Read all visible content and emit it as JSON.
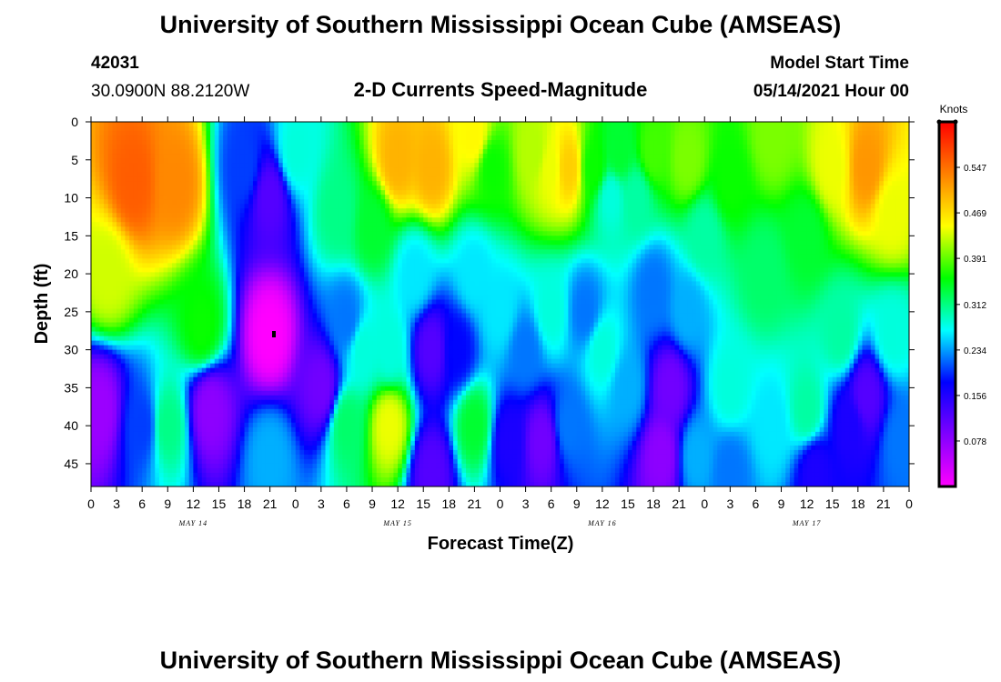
{
  "header": {
    "title": "University of Southern Mississippi Ocean Cube (AMSEAS)",
    "station_id": "42031",
    "location": "30.0900N  88.2120W",
    "product": "2-D Currents Speed-Magnitude",
    "model_start_label": "Model Start Time",
    "model_start_value": "05/14/2021 Hour 00"
  },
  "footer": {
    "title": "University of Southern Mississippi Ocean Cube (AMSEAS)"
  },
  "chart_data": {
    "type": "heatmap",
    "title": "2-D Currents Speed-Magnitude",
    "xlabel": "Forecast Time(Z)",
    "ylabel": "Depth (ft)",
    "x_tick_labels": [
      "0",
      "3",
      "6",
      "9",
      "12",
      "15",
      "18",
      "21",
      "0",
      "3",
      "6",
      "9",
      "12",
      "15",
      "18",
      "21",
      "0",
      "3",
      "6",
      "9",
      "12",
      "15",
      "18",
      "21",
      "0",
      "3",
      "6",
      "9",
      "12",
      "15",
      "18",
      "21",
      "0"
    ],
    "x_range_hours": [
      0,
      96
    ],
    "day_labels": [
      {
        "label": "MAY 14",
        "hour": 12
      },
      {
        "label": "MAY 15",
        "hour": 36
      },
      {
        "label": "MAY 16",
        "hour": 60
      },
      {
        "label": "MAY 17",
        "hour": 84
      }
    ],
    "y_ticks": [
      0,
      5,
      10,
      15,
      20,
      25,
      30,
      35,
      40,
      45
    ],
    "y_range": [
      0,
      48
    ],
    "y_inverted": true,
    "colorbar": {
      "unit": "Knots",
      "ticks": [
        "0.547",
        "0.469",
        "0.391",
        "0.312",
        "0.234",
        "0.156",
        "0.078"
      ],
      "tick_values": [
        0.547,
        0.469,
        0.391,
        0.312,
        0.234,
        0.156,
        0.078
      ],
      "range": [
        0,
        0.625
      ],
      "colors": [
        "#ff00ff",
        "#8000ff",
        "#0000ff",
        "#00ffff",
        "#00ff00",
        "#ffff00",
        "#ff8000",
        "#ff0000"
      ]
    },
    "features": [
      {
        "hour": 5,
        "depth": 8,
        "speed": 0.56
      },
      {
        "hour": 10,
        "depth": 8,
        "speed": 0.53
      },
      {
        "hour": 2,
        "depth": 20,
        "speed": 0.43
      },
      {
        "hour": 13,
        "depth": 27,
        "speed": 0.36
      },
      {
        "hour": 1,
        "depth": 38,
        "speed": 0.07
      },
      {
        "hour": 6,
        "depth": 40,
        "speed": 0.2
      },
      {
        "hour": 9,
        "depth": 40,
        "speed": 0.31
      },
      {
        "hour": 14,
        "depth": 38,
        "speed": 0.08
      },
      {
        "hour": 21,
        "depth": 28,
        "speed": 0.0
      },
      {
        "hour": 21,
        "depth": 10,
        "speed": 0.12
      },
      {
        "hour": 18,
        "depth": 6,
        "speed": 0.2
      },
      {
        "hour": 24,
        "depth": 4,
        "speed": 0.28
      },
      {
        "hour": 21,
        "depth": 44,
        "speed": 0.24
      },
      {
        "hour": 27,
        "depth": 35,
        "speed": 0.1
      },
      {
        "hour": 29,
        "depth": 12,
        "speed": 0.31
      },
      {
        "hour": 30,
        "depth": 26,
        "speed": 0.22
      },
      {
        "hour": 30,
        "depth": 40,
        "speed": 0.32
      },
      {
        "hour": 32,
        "depth": 30,
        "speed": 0.28
      },
      {
        "hour": 36,
        "depth": 5,
        "speed": 0.5
      },
      {
        "hour": 33,
        "depth": 14,
        "speed": 0.34
      },
      {
        "hour": 35,
        "depth": 40,
        "speed": 0.44
      },
      {
        "hour": 35,
        "depth": 30,
        "speed": 0.28
      },
      {
        "hour": 38,
        "depth": 20,
        "speed": 0.26
      },
      {
        "hour": 40,
        "depth": 6,
        "speed": 0.5
      },
      {
        "hour": 40,
        "depth": 30,
        "speed": 0.12
      },
      {
        "hour": 40,
        "depth": 46,
        "speed": 0.12
      },
      {
        "hour": 43,
        "depth": 30,
        "speed": 0.18
      },
      {
        "hour": 45,
        "depth": 2,
        "speed": 0.45
      },
      {
        "hour": 45,
        "depth": 20,
        "speed": 0.26
      },
      {
        "hour": 45,
        "depth": 40,
        "speed": 0.34
      },
      {
        "hour": 47,
        "depth": 6,
        "speed": 0.36
      },
      {
        "hour": 48,
        "depth": 25,
        "speed": 0.26
      },
      {
        "hour": 49,
        "depth": 42,
        "speed": 0.16
      },
      {
        "hour": 51,
        "depth": 30,
        "speed": 0.22
      },
      {
        "hour": 52,
        "depth": 4,
        "speed": 0.42
      },
      {
        "hour": 53,
        "depth": 42,
        "speed": 0.1
      },
      {
        "hour": 54,
        "depth": 6,
        "speed": 0.44
      },
      {
        "hour": 54,
        "depth": 25,
        "speed": 0.28
      },
      {
        "hour": 56,
        "depth": 6,
        "speed": 0.48
      },
      {
        "hour": 56,
        "depth": 40,
        "speed": 0.22
      },
      {
        "hour": 58,
        "depth": 25,
        "speed": 0.22
      },
      {
        "hour": 59,
        "depth": 6,
        "speed": 0.36
      },
      {
        "hour": 60,
        "depth": 30,
        "speed": 0.28
      },
      {
        "hour": 61,
        "depth": 10,
        "speed": 0.28
      },
      {
        "hour": 62,
        "depth": 4,
        "speed": 0.34
      },
      {
        "hour": 63,
        "depth": 35,
        "speed": 0.24
      },
      {
        "hour": 64,
        "depth": 10,
        "speed": 0.3
      },
      {
        "hour": 66,
        "depth": 4,
        "speed": 0.38
      },
      {
        "hour": 66,
        "depth": 22,
        "speed": 0.22
      },
      {
        "hour": 68,
        "depth": 35,
        "speed": 0.1
      },
      {
        "hour": 67,
        "depth": 44,
        "speed": 0.08
      },
      {
        "hour": 70,
        "depth": 5,
        "speed": 0.4
      },
      {
        "hour": 70,
        "depth": 25,
        "speed": 0.24
      },
      {
        "hour": 71,
        "depth": 44,
        "speed": 0.24
      },
      {
        "hour": 72,
        "depth": 15,
        "speed": 0.3
      },
      {
        "hour": 75,
        "depth": 8,
        "speed": 0.36
      },
      {
        "hour": 75,
        "depth": 35,
        "speed": 0.28
      },
      {
        "hour": 75,
        "depth": 46,
        "speed": 0.22
      },
      {
        "hour": 79,
        "depth": 20,
        "speed": 0.32
      },
      {
        "hour": 80,
        "depth": 2,
        "speed": 0.4
      },
      {
        "hour": 80,
        "depth": 40,
        "speed": 0.26
      },
      {
        "hour": 84,
        "depth": 15,
        "speed": 0.34
      },
      {
        "hour": 84,
        "depth": 38,
        "speed": 0.3
      },
      {
        "hour": 85,
        "depth": 46,
        "speed": 0.16
      },
      {
        "hour": 87,
        "depth": 6,
        "speed": 0.44
      },
      {
        "hour": 88,
        "depth": 28,
        "speed": 0.3
      },
      {
        "hour": 89,
        "depth": 40,
        "speed": 0.16
      },
      {
        "hour": 91,
        "depth": 6,
        "speed": 0.52
      },
      {
        "hour": 91,
        "depth": 36,
        "speed": 0.12
      },
      {
        "hour": 94,
        "depth": 12,
        "speed": 0.44
      },
      {
        "hour": 94,
        "depth": 28,
        "speed": 0.28
      },
      {
        "hour": 95,
        "depth": 42,
        "speed": 0.22
      }
    ]
  }
}
